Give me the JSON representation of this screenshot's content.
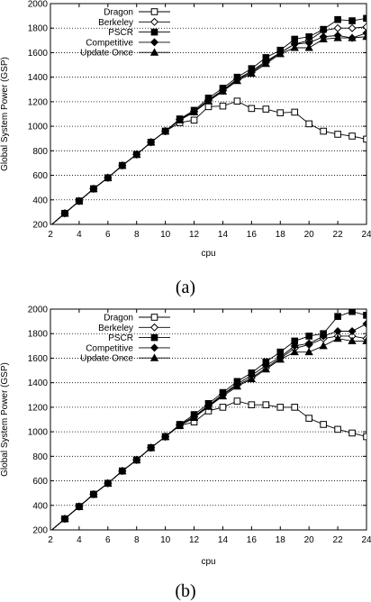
{
  "chart_data": [
    {
      "type": "line",
      "caption": "(a)",
      "xlabel": "cpu",
      "ylabel": "Global System Power (GSP)",
      "xlim": [
        2,
        24
      ],
      "ylim": [
        200,
        2000
      ],
      "xticks": [
        2,
        4,
        6,
        8,
        10,
        12,
        14,
        16,
        18,
        20,
        22,
        24
      ],
      "yticks": [
        200,
        400,
        600,
        800,
        1000,
        1200,
        1400,
        1600,
        1800,
        2000
      ],
      "grid": "horizontal-dotted",
      "legend_position": "top-left",
      "x": [
        2,
        3,
        4,
        5,
        6,
        7,
        8,
        9,
        10,
        11,
        12,
        13,
        14,
        15,
        16,
        17,
        18,
        19,
        20,
        21,
        22,
        23,
        24
      ],
      "series": [
        {
          "name": "Dragon",
          "marker": "open-square",
          "values": [
            190,
            290,
            390,
            490,
            580,
            680,
            770,
            870,
            960,
            1030,
            1050,
            1160,
            1165,
            1205,
            1145,
            1140,
            1110,
            1115,
            1020,
            960,
            935,
            920,
            895
          ]
        },
        {
          "name": "Berkeley",
          "marker": "open-diamond",
          "values": [
            190,
            290,
            390,
            490,
            580,
            680,
            770,
            870,
            960,
            1055,
            1120,
            1210,
            1290,
            1380,
            1440,
            1520,
            1600,
            1670,
            1700,
            1780,
            1800,
            1800,
            1810
          ]
        },
        {
          "name": "PSCR",
          "marker": "filled-square",
          "values": [
            190,
            290,
            390,
            490,
            580,
            680,
            770,
            870,
            960,
            1060,
            1130,
            1230,
            1310,
            1400,
            1470,
            1560,
            1620,
            1710,
            1730,
            1790,
            1870,
            1860,
            1880
          ]
        },
        {
          "name": "Competitive",
          "marker": "filled-diamond",
          "values": [
            190,
            290,
            390,
            490,
            580,
            680,
            770,
            870,
            960,
            1055,
            1120,
            1215,
            1295,
            1385,
            1450,
            1530,
            1600,
            1670,
            1680,
            1730,
            1740,
            1720,
            1760
          ]
        },
        {
          "name": "Update Once",
          "marker": "filled-triangle",
          "values": [
            190,
            290,
            390,
            490,
            580,
            680,
            770,
            870,
            960,
            1050,
            1115,
            1205,
            1285,
            1370,
            1430,
            1510,
            1590,
            1640,
            1640,
            1710,
            1720,
            1720,
            1730
          ]
        }
      ]
    },
    {
      "type": "line",
      "caption": "(b)",
      "xlabel": "cpu",
      "ylabel": "Global System Power (GSP)",
      "xlim": [
        2,
        24
      ],
      "ylim": [
        200,
        2000
      ],
      "xticks": [
        2,
        4,
        6,
        8,
        10,
        12,
        14,
        16,
        18,
        20,
        22,
        24
      ],
      "yticks": [
        200,
        400,
        600,
        800,
        1000,
        1200,
        1400,
        1600,
        1800,
        2000
      ],
      "grid": "horizontal-dotted",
      "legend_position": "top-left",
      "x": [
        2,
        3,
        4,
        5,
        6,
        7,
        8,
        9,
        10,
        11,
        12,
        13,
        14,
        15,
        16,
        17,
        18,
        19,
        20,
        21,
        22,
        23,
        24
      ],
      "series": [
        {
          "name": "Dragon",
          "marker": "open-square",
          "values": [
            190,
            290,
            390,
            490,
            580,
            680,
            770,
            870,
            960,
            1050,
            1080,
            1170,
            1200,
            1250,
            1220,
            1220,
            1200,
            1200,
            1110,
            1060,
            1020,
            990,
            960
          ]
        },
        {
          "name": "Berkeley",
          "marker": "open-diamond",
          "values": [
            190,
            290,
            390,
            490,
            580,
            680,
            770,
            870,
            960,
            1055,
            1120,
            1210,
            1300,
            1380,
            1440,
            1520,
            1600,
            1680,
            1710,
            1760,
            1780,
            1780,
            1760
          ]
        },
        {
          "name": "PSCR",
          "marker": "filled-square",
          "values": [
            190,
            290,
            390,
            490,
            580,
            680,
            770,
            870,
            960,
            1060,
            1140,
            1230,
            1320,
            1410,
            1480,
            1570,
            1650,
            1740,
            1780,
            1800,
            1940,
            1980,
            1950
          ]
        },
        {
          "name": "Competitive",
          "marker": "filled-diamond",
          "values": [
            190,
            290,
            390,
            490,
            580,
            680,
            770,
            870,
            960,
            1055,
            1125,
            1215,
            1305,
            1390,
            1460,
            1540,
            1610,
            1700,
            1720,
            1780,
            1820,
            1820,
            1880
          ]
        },
        {
          "name": "Update Once",
          "marker": "filled-triangle",
          "values": [
            190,
            290,
            390,
            490,
            580,
            680,
            770,
            870,
            960,
            1050,
            1115,
            1205,
            1290,
            1370,
            1430,
            1510,
            1590,
            1650,
            1650,
            1700,
            1760,
            1740,
            1740
          ]
        }
      ]
    }
  ]
}
